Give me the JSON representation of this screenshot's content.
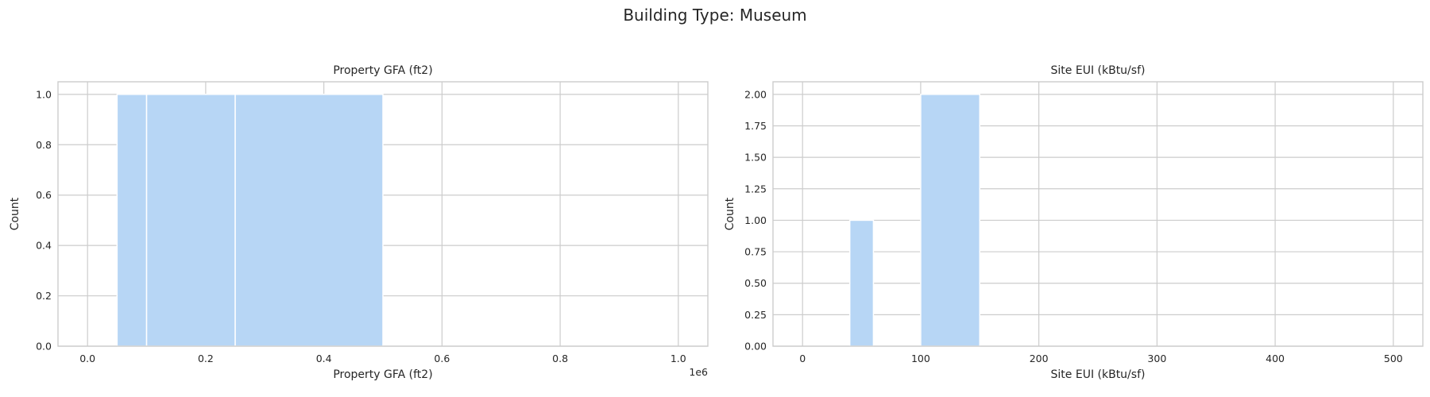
{
  "suptitle": "Building Type: Museum",
  "chart_data": [
    {
      "type": "bar",
      "title": "Property GFA (ft2)",
      "xlabel": "Property GFA (ft2)",
      "ylabel": "Count",
      "x_offset_label": "1e6",
      "x_scale": 1000000,
      "xlim": [
        -0.05,
        1.05
      ],
      "ylim": [
        0,
        1.05
      ],
      "xticks": [
        0.0,
        0.2,
        0.4,
        0.6,
        0.8,
        1.0
      ],
      "xtick_labels": [
        "0.0",
        "0.2",
        "0.4",
        "0.6",
        "0.8",
        "1.0"
      ],
      "yticks": [
        0.0,
        0.2,
        0.4,
        0.6,
        0.8,
        1.0
      ],
      "ytick_labels": [
        "0.0",
        "0.2",
        "0.4",
        "0.6",
        "0.8",
        "1.0"
      ],
      "grid": true,
      "bins": [
        {
          "start": 0.05,
          "end": 0.1,
          "count": 1
        },
        {
          "start": 0.1,
          "end": 0.25,
          "count": 1
        },
        {
          "start": 0.25,
          "end": 0.5,
          "count": 1
        }
      ]
    },
    {
      "type": "bar",
      "title": "Site EUI (kBtu/sf)",
      "xlabel": "Site EUI (kBtu/sf)",
      "ylabel": "Count",
      "xlim": [
        -25,
        525
      ],
      "ylim": [
        0,
        2.1
      ],
      "xticks": [
        0,
        100,
        200,
        300,
        400,
        500
      ],
      "xtick_labels": [
        "0",
        "100",
        "200",
        "300",
        "400",
        "500"
      ],
      "yticks": [
        0.0,
        0.25,
        0.5,
        0.75,
        1.0,
        1.25,
        1.5,
        1.75,
        2.0
      ],
      "ytick_labels": [
        "0.00",
        "0.25",
        "0.50",
        "0.75",
        "1.00",
        "1.25",
        "1.50",
        "1.75",
        "2.00"
      ],
      "grid": true,
      "bins": [
        {
          "start": 40,
          "end": 60,
          "count": 1
        },
        {
          "start": 100,
          "end": 150,
          "count": 2
        }
      ]
    }
  ]
}
